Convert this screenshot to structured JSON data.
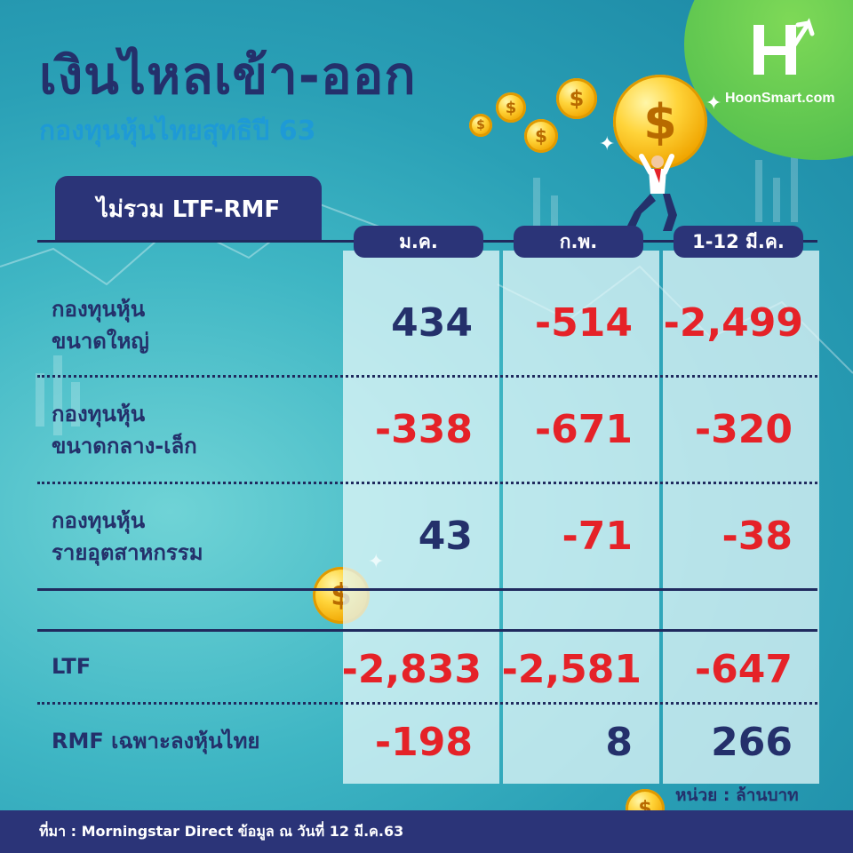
{
  "header": {
    "title": "เงินไหลเข้า-ออก",
    "subtitle": "กองทุนหุ้นไทยสุทธิปี 63",
    "tab_label": "ไม่รวม LTF-RMF",
    "brand": "HoonSmart.com"
  },
  "table": {
    "columns": [
      "ม.ค.",
      "ก.พ.",
      "1-12 มี.ค."
    ],
    "rows": [
      {
        "label_line1": "กองทุนหุ้น",
        "label_line2": "ขนาดใหญ่",
        "values": [
          "434",
          "-514",
          "-2,499"
        ]
      },
      {
        "label_line1": "กองทุนหุ้น",
        "label_line2": "ขนาดกลาง-เล็ก",
        "values": [
          "-338",
          "-671",
          "-320"
        ]
      },
      {
        "label_line1": "กองทุนหุ้น",
        "label_line2": "รายอุตสาหกรรม",
        "values": [
          "43",
          "-71",
          "-38"
        ]
      }
    ],
    "extra_rows": [
      {
        "label": "LTF",
        "values": [
          "-2,833",
          "-2,581",
          "-647"
        ]
      },
      {
        "label": "RMF เฉพาะลงหุ้นไทย",
        "values": [
          "-198",
          "8",
          "266"
        ]
      }
    ]
  },
  "unit": "หน่วย : ล้านบาท",
  "footer": {
    "source": "ที่มา : Morningstar Direct ข้อมูล ณ วันที่ 12 มี.ค.63"
  },
  "colors": {
    "navy": "#2b3478",
    "title": "#24306b",
    "subtitle": "#1e9ad6",
    "negative": "#e52228",
    "positive": "#24306b",
    "background": "#3fb6c4",
    "brand_green": "#43b54a"
  }
}
